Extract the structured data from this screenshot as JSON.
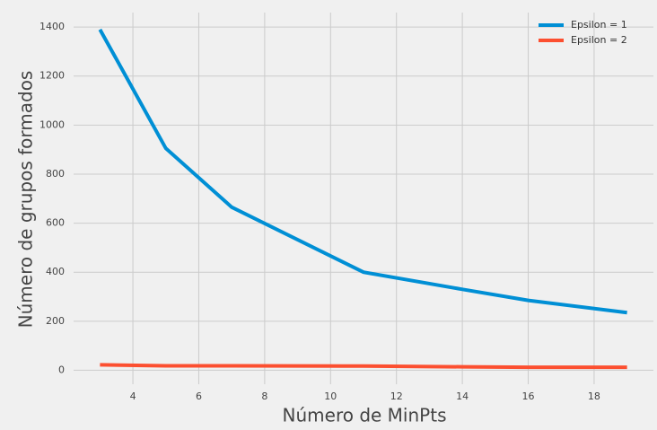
{
  "chart_data": {
    "type": "line",
    "xlabel": "Número de MinPts",
    "ylabel": "Número de grupos formados",
    "series": [
      {
        "name": "Epsilon = 1",
        "color": "#008fd5",
        "x": [
          3,
          5,
          7,
          11,
          14,
          16,
          19
        ],
        "values": [
          1390,
          905,
          665,
          400,
          330,
          285,
          235
        ]
      },
      {
        "name": "Epsilon = 2",
        "color": "#fc4f30",
        "x": [
          3,
          5,
          7,
          11,
          14,
          16,
          19
        ],
        "values": [
          22,
          18,
          18,
          17,
          14,
          12,
          12
        ]
      }
    ],
    "xlim": [
      2.2,
      19.8
    ],
    "ylim": [
      -57,
      1459
    ],
    "xticks": [
      4,
      6,
      8,
      10,
      12,
      14,
      16,
      18
    ],
    "yticks": [
      0,
      200,
      400,
      600,
      800,
      1000,
      1200,
      1400
    ],
    "grid": true,
    "legend": "upper right"
  }
}
